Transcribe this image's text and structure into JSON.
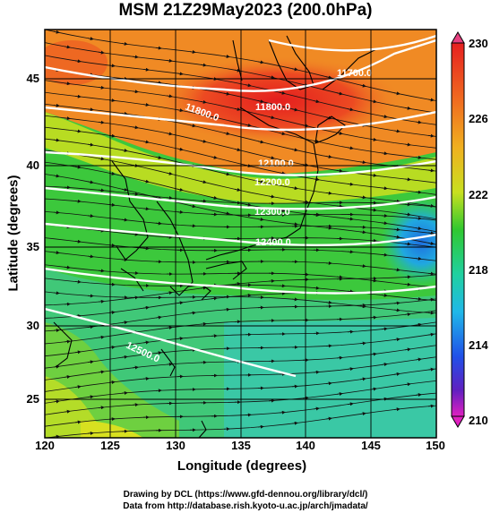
{
  "title": "MSM 21Z29May2023 (200.0hPa)",
  "axes": {
    "xlabel": "Longitude (degrees)",
    "ylabel": "Latitude  (degrees)",
    "xticks": [
      "120",
      "125",
      "130",
      "135",
      "140",
      "145",
      "150"
    ],
    "yticks": [
      "25",
      "30",
      "35",
      "40",
      "45"
    ]
  },
  "colorbar": {
    "ticks": [
      "230",
      "226",
      "222",
      "218",
      "214",
      "210"
    ],
    "min": 210,
    "max": 230
  },
  "contour_labels": [
    "11700.0",
    "11800.0",
    "11800.0",
    "12100.0",
    "12200.0",
    "12300.0",
    "12400.0",
    "12500.0"
  ],
  "credits": {
    "line1": "Drawing by DCL (https://www.gfd-dennou.org/library/dcl/)",
    "line2": "Data from http://database.rish.kyoto-u.ac.jp/arch/jmadata/"
  },
  "colors": {
    "red": "#e8321e",
    "orange": "#f08a24",
    "yellow": "#d8e020",
    "green": "#3cc83c",
    "cyan": "#20c8d8",
    "blue": "#1e6ee0"
  }
}
